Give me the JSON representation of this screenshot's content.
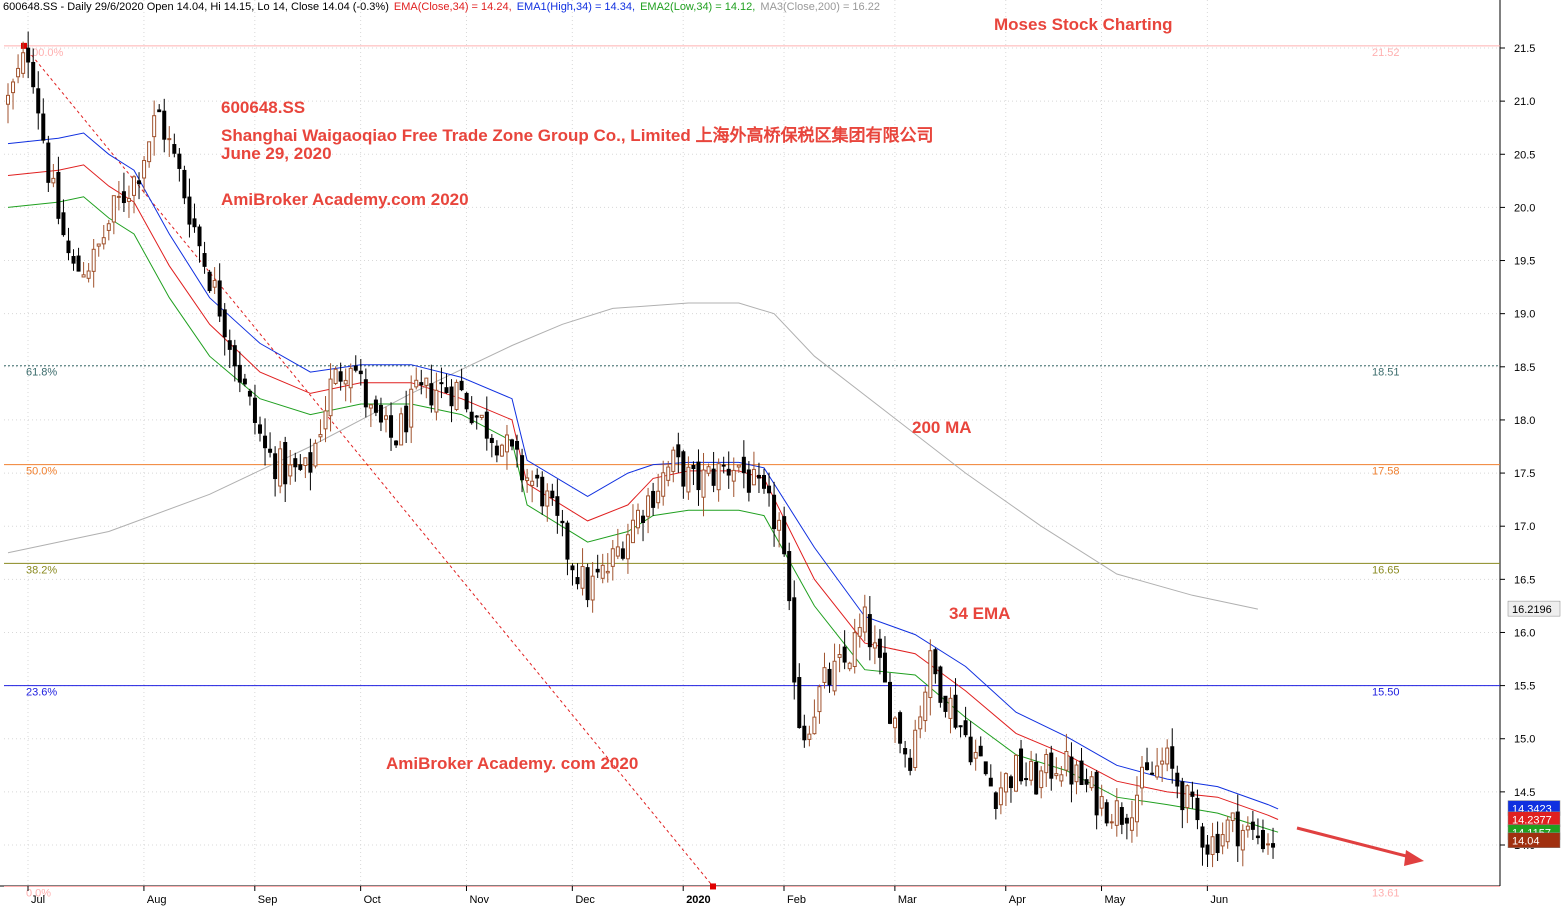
{
  "header": {
    "symbol_info": "600648.SS - Daily 29/6/2020 Open 14.04, Hi 14.15, Lo 14, Close 14.04 (-0.3%)",
    "ema": "EMA(Close,34) = 14.24,",
    "ema1": "EMA1(High,34) = 14.34,",
    "ema2": "EMA2(Low,34) = 14.12,",
    "ma3": "MA3(Close,200) = 16.22"
  },
  "annotations": {
    "brand": "Moses Stock Charting",
    "ticker": "600648.SS",
    "company": "Shanghai Waigaoqiao Free Trade Zone Group Co., Limited 上海外高桥保税区集团有限公司",
    "date": "June 29, 2020",
    "site1": "AmiBroker Academy.com 2020",
    "site2": "AmiBroker Academy. com  2020",
    "ma_label": "200 MA",
    "ema_label": "34 EMA"
  },
  "chart_data": {
    "type": "candlestick",
    "ylim": [
      13.55,
      21.7
    ],
    "y_ticks": [
      "21.5",
      "21.0",
      "20.5",
      "20.0",
      "19.5",
      "19.0",
      "18.5",
      "18.0",
      "17.5",
      "17.0",
      "16.5",
      "16.0",
      "15.5",
      "15.0",
      "14.5",
      "14.0"
    ],
    "x_ticks": [
      "Jul",
      "Aug",
      "Sep",
      "Oct",
      "Nov",
      "Dec",
      "2020",
      "Feb",
      "Mar",
      "Apr",
      "May",
      "Jun"
    ],
    "fib_levels": [
      {
        "pct": "100.0%",
        "price": 21.52,
        "label": "21.52",
        "color": "#ffb0b0"
      },
      {
        "pct": "61.8%",
        "price": 18.51,
        "label": "18.51",
        "color": "#3a6b6b"
      },
      {
        "pct": "50.0%",
        "price": 17.58,
        "label": "17.58",
        "color": "#f08030"
      },
      {
        "pct": "38.2%",
        "price": 16.65,
        "label": "16.65",
        "color": "#8a8a20"
      },
      {
        "pct": "23.6%",
        "price": 15.5,
        "label": "15.50",
        "color": "#2020e0"
      },
      {
        "pct": "0.0%",
        "price": 13.61,
        "label": "13.61",
        "color": "#ffb0b0"
      }
    ],
    "last_values": [
      {
        "label": "16.2196",
        "value": 16.2196,
        "color": "#eeeeee",
        "text_color": "#000000"
      },
      {
        "label": "14.3423",
        "value": 14.3423,
        "color": "#1030e0",
        "text_color": "#ffffff"
      },
      {
        "label": "14.2377",
        "value": 14.2377,
        "color": "#e02020",
        "text_color": "#ffffff"
      },
      {
        "label": "14.1157",
        "value": 14.1157,
        "color": "#20a020",
        "text_color": "#ffffff"
      },
      {
        "label": "14.04",
        "value": 14.04,
        "color": "#a03010",
        "text_color": "#ffffff"
      }
    ],
    "colors": {
      "ema_high": "#1030e0",
      "ema_close": "#e02020",
      "ema_low": "#20a020",
      "ma200": "#b0b0b0",
      "up": "#a0522d",
      "down": "#000000",
      "trend_arrow": "#e04040"
    },
    "ema_close_path": [
      [
        0,
        20.3
      ],
      [
        10,
        20.35
      ],
      [
        15,
        20.4
      ],
      [
        20,
        20.2
      ],
      [
        25,
        20.05
      ],
      [
        32,
        19.45
      ],
      [
        40,
        18.9
      ],
      [
        50,
        18.45
      ],
      [
        60,
        18.25
      ],
      [
        70,
        18.35
      ],
      [
        80,
        18.35
      ],
      [
        90,
        18.2
      ],
      [
        100,
        18.0
      ],
      [
        103,
        17.4
      ],
      [
        115,
        17.05
      ],
      [
        123,
        17.2
      ],
      [
        128,
        17.45
      ],
      [
        135,
        17.52
      ],
      [
        145,
        17.52
      ],
      [
        150,
        17.45
      ],
      [
        160,
        16.5
      ],
      [
        170,
        15.9
      ],
      [
        180,
        15.8
      ],
      [
        190,
        15.45
      ],
      [
        200,
        15.05
      ],
      [
        210,
        14.85
      ],
      [
        220,
        14.6
      ],
      [
        230,
        14.5
      ],
      [
        240,
        14.45
      ],
      [
        250,
        14.28
      ],
      [
        252,
        14.24
      ]
    ],
    "ema_high_path": [
      [
        0,
        20.6
      ],
      [
        10,
        20.65
      ],
      [
        15,
        20.7
      ],
      [
        20,
        20.5
      ],
      [
        25,
        20.35
      ],
      [
        32,
        19.75
      ],
      [
        40,
        19.15
      ],
      [
        50,
        18.72
      ],
      [
        60,
        18.45
      ],
      [
        70,
        18.52
      ],
      [
        80,
        18.52
      ],
      [
        90,
        18.4
      ],
      [
        100,
        18.2
      ],
      [
        103,
        17.62
      ],
      [
        115,
        17.28
      ],
      [
        123,
        17.5
      ],
      [
        128,
        17.58
      ],
      [
        135,
        17.6
      ],
      [
        145,
        17.6
      ],
      [
        150,
        17.55
      ],
      [
        160,
        16.8
      ],
      [
        170,
        16.15
      ],
      [
        180,
        15.98
      ],
      [
        190,
        15.68
      ],
      [
        200,
        15.25
      ],
      [
        210,
        15.02
      ],
      [
        220,
        14.75
      ],
      [
        230,
        14.62
      ],
      [
        240,
        14.55
      ],
      [
        250,
        14.38
      ],
      [
        252,
        14.34
      ]
    ],
    "ema_low_path": [
      [
        0,
        20.0
      ],
      [
        10,
        20.05
      ],
      [
        15,
        20.1
      ],
      [
        20,
        19.9
      ],
      [
        25,
        19.75
      ],
      [
        32,
        19.15
      ],
      [
        40,
        18.6
      ],
      [
        50,
        18.2
      ],
      [
        60,
        18.05
      ],
      [
        70,
        18.15
      ],
      [
        80,
        18.15
      ],
      [
        90,
        18.05
      ],
      [
        100,
        17.8
      ],
      [
        103,
        17.2
      ],
      [
        115,
        16.85
      ],
      [
        123,
        16.95
      ],
      [
        128,
        17.1
      ],
      [
        135,
        17.15
      ],
      [
        145,
        17.15
      ],
      [
        150,
        17.1
      ],
      [
        160,
        16.25
      ],
      [
        170,
        15.65
      ],
      [
        180,
        15.6
      ],
      [
        190,
        15.2
      ],
      [
        200,
        14.85
      ],
      [
        210,
        14.7
      ],
      [
        220,
        14.45
      ],
      [
        230,
        14.38
      ],
      [
        240,
        14.3
      ],
      [
        250,
        14.15
      ],
      [
        252,
        14.12
      ]
    ],
    "ma200_path": [
      [
        0,
        16.75
      ],
      [
        20,
        16.95
      ],
      [
        40,
        17.3
      ],
      [
        60,
        17.75
      ],
      [
        80,
        18.25
      ],
      [
        100,
        18.7
      ],
      [
        110,
        18.9
      ],
      [
        120,
        19.05
      ],
      [
        135,
        19.1
      ],
      [
        145,
        19.1
      ],
      [
        152,
        19.0
      ],
      [
        160,
        18.6
      ],
      [
        175,
        18.05
      ],
      [
        190,
        17.5
      ],
      [
        205,
        17.0
      ],
      [
        220,
        16.55
      ],
      [
        235,
        16.35
      ],
      [
        248,
        16.22
      ]
    ],
    "candles_seed": [
      21.0,
      21.5,
      20.2,
      19.4,
      19.5,
      20.0,
      20.3,
      20.9,
      20.3,
      19.6,
      19.0,
      18.3,
      17.7,
      17.5,
      17.5,
      18.3,
      18.6,
      18.0,
      17.8,
      18.2,
      18.3,
      18.3,
      18.0,
      17.8,
      17.5,
      17.3,
      16.8,
      16.4,
      16.6,
      17.0,
      17.3,
      17.6,
      17.4,
      17.5,
      17.6,
      17.3,
      17.0,
      15.0,
      15.5,
      15.7,
      16.1,
      15.4,
      14.8,
      15.7,
      15.3,
      14.9,
      14.5,
      14.7,
      14.6,
      14.8,
      14.6,
      14.4,
      14.3,
      14.6,
      14.8,
      14.4,
      14.0,
      14.2,
      14.1,
      14.04
    ]
  }
}
